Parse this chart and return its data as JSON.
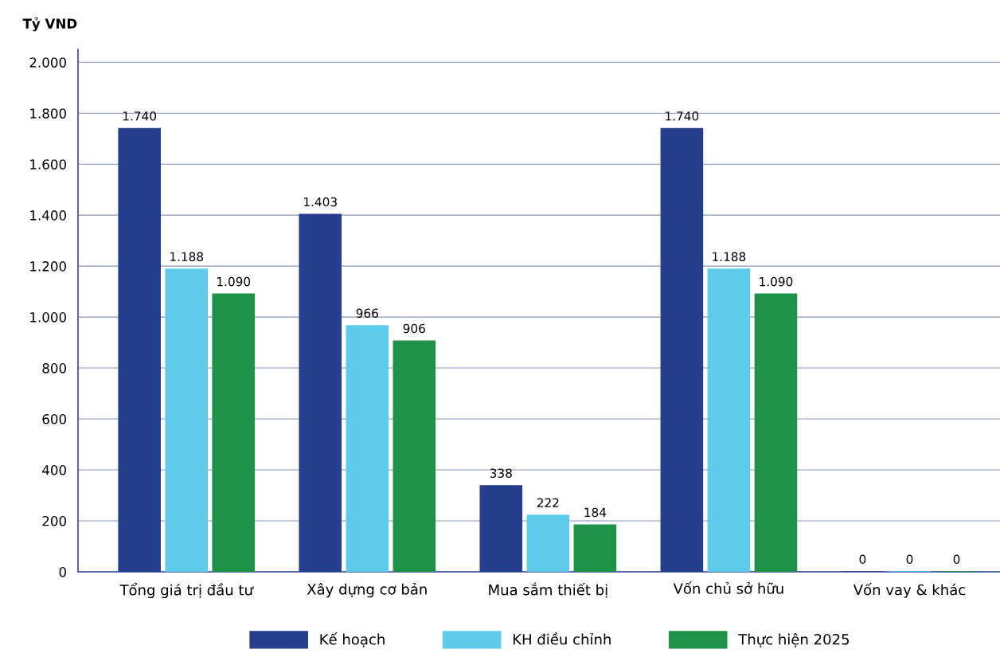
{
  "chart_data": {
    "type": "bar",
    "ylabel": "Tỷ VND",
    "categories": [
      "Tổng giá trị đầu tư",
      "Xây dựng cơ bản",
      "Mua sắm thiết bị",
      "Vốn chủ sở hữu",
      "Vốn vay & khác"
    ],
    "series": [
      {
        "name": "Kế hoạch",
        "color": "#253f8e",
        "values": [
          1740,
          1403,
          338,
          1740,
          0
        ],
        "value_labels": [
          "1.740",
          "1.403",
          "338",
          "1.740",
          "0"
        ]
      },
      {
        "name": "KH điều chỉnh",
        "color": "#5ecbea",
        "values": [
          1188,
          966,
          222,
          1188,
          0
        ],
        "value_labels": [
          "1.188",
          "966",
          "222",
          "1.188",
          "0"
        ]
      },
      {
        "name": "Thực hiện 2025",
        "color": "#1e9248",
        "values": [
          1090,
          906,
          184,
          1090,
          0
        ],
        "value_labels": [
          "1.090",
          "906",
          "184",
          "1.090",
          "0"
        ]
      }
    ],
    "ylim": [
      0,
      2050
    ],
    "yticks": [
      {
        "value": 0,
        "label": "0"
      },
      {
        "value": 200,
        "label": "200"
      },
      {
        "value": 400,
        "label": "400"
      },
      {
        "value": 600,
        "label": "600"
      },
      {
        "value": 800,
        "label": "800"
      },
      {
        "value": 1000,
        "label": "1.000"
      },
      {
        "value": 1200,
        "label": "1.200"
      },
      {
        "value": 1400,
        "label": "1.400"
      },
      {
        "value": 1600,
        "label": "1.600"
      },
      {
        "value": 1800,
        "label": "1.800"
      },
      {
        "value": 2000,
        "label": "2.000"
      }
    ],
    "grid": "y",
    "legend": "bottom"
  }
}
